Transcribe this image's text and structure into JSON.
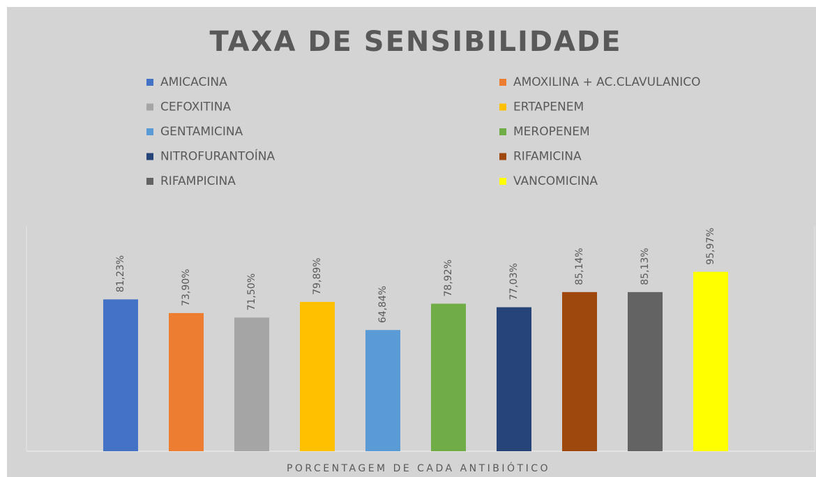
{
  "chart_data": {
    "type": "bar",
    "title": "TAXA DE SENSIBILIDADE",
    "x_label": "PORCENTAGEM DE CADA ANTIBIÓTICO",
    "categories": [
      null
    ],
    "ylim": [
      0,
      120
    ],
    "legend": "top",
    "series": [
      {
        "name": "AMICACINA",
        "color": "#4472c4",
        "values": [
          81.23
        ],
        "value_labels": [
          "81,23%"
        ]
      },
      {
        "name": "AMOXILINA + AC.CLAVULANICO",
        "color": "#ed7d31",
        "values": [
          73.9
        ],
        "value_labels": [
          "73,90%"
        ]
      },
      {
        "name": "CEFOXITINA",
        "color": "#a5a5a5",
        "values": [
          71.5
        ],
        "value_labels": [
          "71,50%"
        ]
      },
      {
        "name": "ERTAPENEM",
        "color": "#ffc000",
        "values": [
          79.89
        ],
        "value_labels": [
          "79,89%"
        ]
      },
      {
        "name": "GENTAMICINA",
        "color": "#5b9bd5",
        "values": [
          64.84
        ],
        "value_labels": [
          "64,84%"
        ]
      },
      {
        "name": "MEROPENEM",
        "color": "#70ad47",
        "values": [
          78.92
        ],
        "value_labels": [
          "78,92%"
        ]
      },
      {
        "name": "NITROFURANTOÍNA",
        "color": "#264478",
        "values": [
          77.03
        ],
        "value_labels": [
          "77,03%"
        ]
      },
      {
        "name": "RIFAMICINA",
        "color": "#9e480e",
        "values": [
          85.14
        ],
        "value_labels": [
          "85,14%"
        ]
      },
      {
        "name": "RIFAMPICINA",
        "color": "#636363",
        "values": [
          85.13
        ],
        "value_labels": [
          "85,13%"
        ]
      },
      {
        "name": "VANCOMICINA",
        "color": "#ffff00",
        "values": [
          95.97
        ],
        "value_labels": [
          "95,97%"
        ]
      }
    ]
  }
}
